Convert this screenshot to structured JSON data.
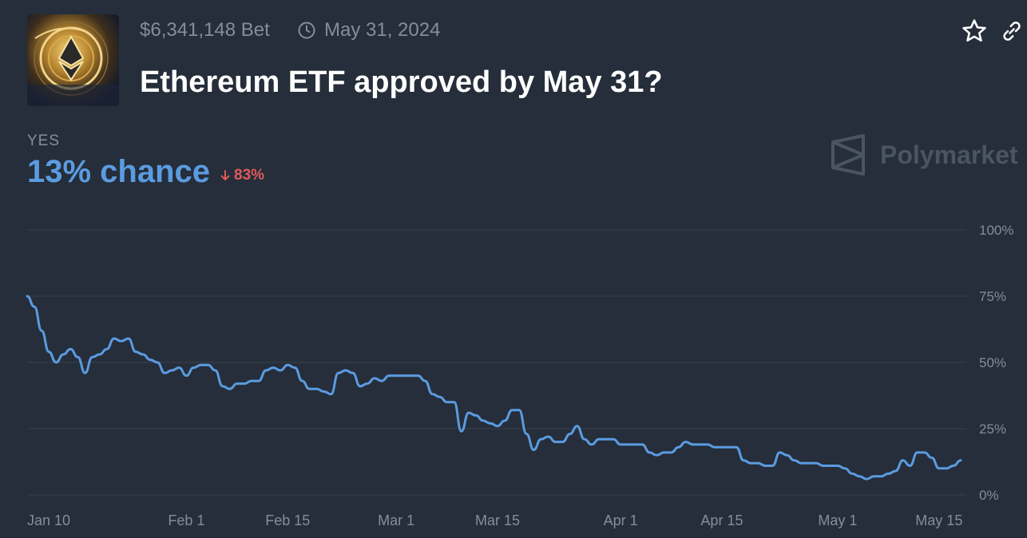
{
  "header": {
    "volume": "$6,341,148 Bet",
    "end_date": "May 31, 2024",
    "title": "Ethereum ETF approved by May 31?"
  },
  "icons": {
    "market_image": "ethereum-coin-image",
    "clock": "clock-icon",
    "favorite": "star-icon",
    "share": "link-icon",
    "brand": "polymarket-logo-icon",
    "change_direction": "arrow-down-icon"
  },
  "outcome": {
    "label": "YES",
    "chance": "13% chance",
    "change": "83%",
    "change_direction": "down"
  },
  "brand": {
    "name": "Polymarket"
  },
  "colors": {
    "background": "#252e3a",
    "line": "#5b9be0",
    "negative": "#e05a5a",
    "grid": "#36404d",
    "muted": "#858d99"
  },
  "chart_data": {
    "type": "line",
    "x_axis": "date",
    "y_axis_position": "right",
    "ylim": [
      0,
      100
    ],
    "y_ticks": [
      0,
      25,
      50,
      75,
      100
    ],
    "y_tick_labels": [
      "0%",
      "25%",
      "50%",
      "75%",
      "100%"
    ],
    "x_tick_labels": [
      "Jan 10",
      "Feb 1",
      "Feb 15",
      "Mar 1",
      "Mar 15",
      "Apr 1",
      "Apr 15",
      "May 1",
      "May 15"
    ],
    "x_tick_dates": [
      "2024-01-10",
      "2024-02-01",
      "2024-02-15",
      "2024-03-01",
      "2024-03-15",
      "2024-04-01",
      "2024-04-15",
      "2024-05-01",
      "2024-05-15"
    ],
    "grid": true,
    "series": [
      {
        "color": "#5b9be0",
        "points": [
          [
            "2024-01-10",
            75
          ],
          [
            "2024-01-11",
            71
          ],
          [
            "2024-01-12",
            62
          ],
          [
            "2024-01-13",
            54
          ],
          [
            "2024-01-14",
            50
          ],
          [
            "2024-01-15",
            53
          ],
          [
            "2024-01-16",
            55
          ],
          [
            "2024-01-17",
            52
          ],
          [
            "2024-01-18",
            46
          ],
          [
            "2024-01-19",
            52
          ],
          [
            "2024-01-20",
            53
          ],
          [
            "2024-01-21",
            55
          ],
          [
            "2024-01-22",
            59
          ],
          [
            "2024-01-23",
            58
          ],
          [
            "2024-01-24",
            59
          ],
          [
            "2024-01-25",
            54
          ],
          [
            "2024-01-26",
            53
          ],
          [
            "2024-01-27",
            51
          ],
          [
            "2024-01-28",
            50
          ],
          [
            "2024-01-29",
            46
          ],
          [
            "2024-01-30",
            47
          ],
          [
            "2024-01-31",
            48
          ],
          [
            "2024-02-01",
            45
          ],
          [
            "2024-02-02",
            48
          ],
          [
            "2024-02-03",
            49
          ],
          [
            "2024-02-04",
            49
          ],
          [
            "2024-02-05",
            47
          ],
          [
            "2024-02-06",
            41
          ],
          [
            "2024-02-07",
            40
          ],
          [
            "2024-02-08",
            42
          ],
          [
            "2024-02-09",
            42
          ],
          [
            "2024-02-10",
            43
          ],
          [
            "2024-02-11",
            43
          ],
          [
            "2024-02-12",
            47
          ],
          [
            "2024-02-13",
            48
          ],
          [
            "2024-02-14",
            47
          ],
          [
            "2024-02-15",
            49
          ],
          [
            "2024-02-16",
            48
          ],
          [
            "2024-02-17",
            43
          ],
          [
            "2024-02-18",
            40
          ],
          [
            "2024-02-19",
            40
          ],
          [
            "2024-02-20",
            39
          ],
          [
            "2024-02-21",
            38
          ],
          [
            "2024-02-22",
            46
          ],
          [
            "2024-02-23",
            47
          ],
          [
            "2024-02-24",
            46
          ],
          [
            "2024-02-25",
            41
          ],
          [
            "2024-02-26",
            42
          ],
          [
            "2024-02-27",
            44
          ],
          [
            "2024-02-28",
            43
          ],
          [
            "2024-02-29",
            45
          ],
          [
            "2024-03-01",
            45
          ],
          [
            "2024-03-02",
            45
          ],
          [
            "2024-03-03",
            45
          ],
          [
            "2024-03-04",
            45
          ],
          [
            "2024-03-05",
            43
          ],
          [
            "2024-03-06",
            38
          ],
          [
            "2024-03-07",
            37
          ],
          [
            "2024-03-08",
            35
          ],
          [
            "2024-03-09",
            35
          ],
          [
            "2024-03-10",
            24
          ],
          [
            "2024-03-11",
            31
          ],
          [
            "2024-03-12",
            30
          ],
          [
            "2024-03-13",
            28
          ],
          [
            "2024-03-14",
            27
          ],
          [
            "2024-03-15",
            26
          ],
          [
            "2024-03-16",
            28
          ],
          [
            "2024-03-17",
            32
          ],
          [
            "2024-03-18",
            32
          ],
          [
            "2024-03-19",
            23
          ],
          [
            "2024-03-20",
            17
          ],
          [
            "2024-03-21",
            21
          ],
          [
            "2024-03-22",
            22
          ],
          [
            "2024-03-23",
            20
          ],
          [
            "2024-03-24",
            20
          ],
          [
            "2024-03-25",
            23
          ],
          [
            "2024-03-26",
            26
          ],
          [
            "2024-03-27",
            21
          ],
          [
            "2024-03-28",
            19
          ],
          [
            "2024-03-29",
            21
          ],
          [
            "2024-03-30",
            21
          ],
          [
            "2024-03-31",
            21
          ],
          [
            "2024-04-01",
            19
          ],
          [
            "2024-04-02",
            19
          ],
          [
            "2024-04-03",
            19
          ],
          [
            "2024-04-04",
            19
          ],
          [
            "2024-04-05",
            16
          ],
          [
            "2024-04-06",
            15
          ],
          [
            "2024-04-07",
            16
          ],
          [
            "2024-04-08",
            16
          ],
          [
            "2024-04-09",
            18
          ],
          [
            "2024-04-10",
            20
          ],
          [
            "2024-04-11",
            19
          ],
          [
            "2024-04-12",
            19
          ],
          [
            "2024-04-13",
            19
          ],
          [
            "2024-04-14",
            18
          ],
          [
            "2024-04-15",
            18
          ],
          [
            "2024-04-16",
            18
          ],
          [
            "2024-04-17",
            18
          ],
          [
            "2024-04-18",
            13
          ],
          [
            "2024-04-19",
            12
          ],
          [
            "2024-04-20",
            12
          ],
          [
            "2024-04-21",
            11
          ],
          [
            "2024-04-22",
            11
          ],
          [
            "2024-04-23",
            16
          ],
          [
            "2024-04-24",
            15
          ],
          [
            "2024-04-25",
            13
          ],
          [
            "2024-04-26",
            12
          ],
          [
            "2024-04-27",
            12
          ],
          [
            "2024-04-28",
            12
          ],
          [
            "2024-04-29",
            11
          ],
          [
            "2024-04-30",
            11
          ],
          [
            "2024-05-01",
            11
          ],
          [
            "2024-05-02",
            10
          ],
          [
            "2024-05-03",
            8
          ],
          [
            "2024-05-04",
            7
          ],
          [
            "2024-05-05",
            6
          ],
          [
            "2024-05-06",
            7
          ],
          [
            "2024-05-07",
            7
          ],
          [
            "2024-05-08",
            8
          ],
          [
            "2024-05-09",
            9
          ],
          [
            "2024-05-10",
            13
          ],
          [
            "2024-05-11",
            11
          ],
          [
            "2024-05-12",
            16
          ],
          [
            "2024-05-13",
            16
          ],
          [
            "2024-05-14",
            14
          ],
          [
            "2024-05-15",
            10
          ],
          [
            "2024-05-16",
            10
          ],
          [
            "2024-05-17",
            11
          ],
          [
            "2024-05-18",
            13
          ]
        ]
      }
    ]
  }
}
